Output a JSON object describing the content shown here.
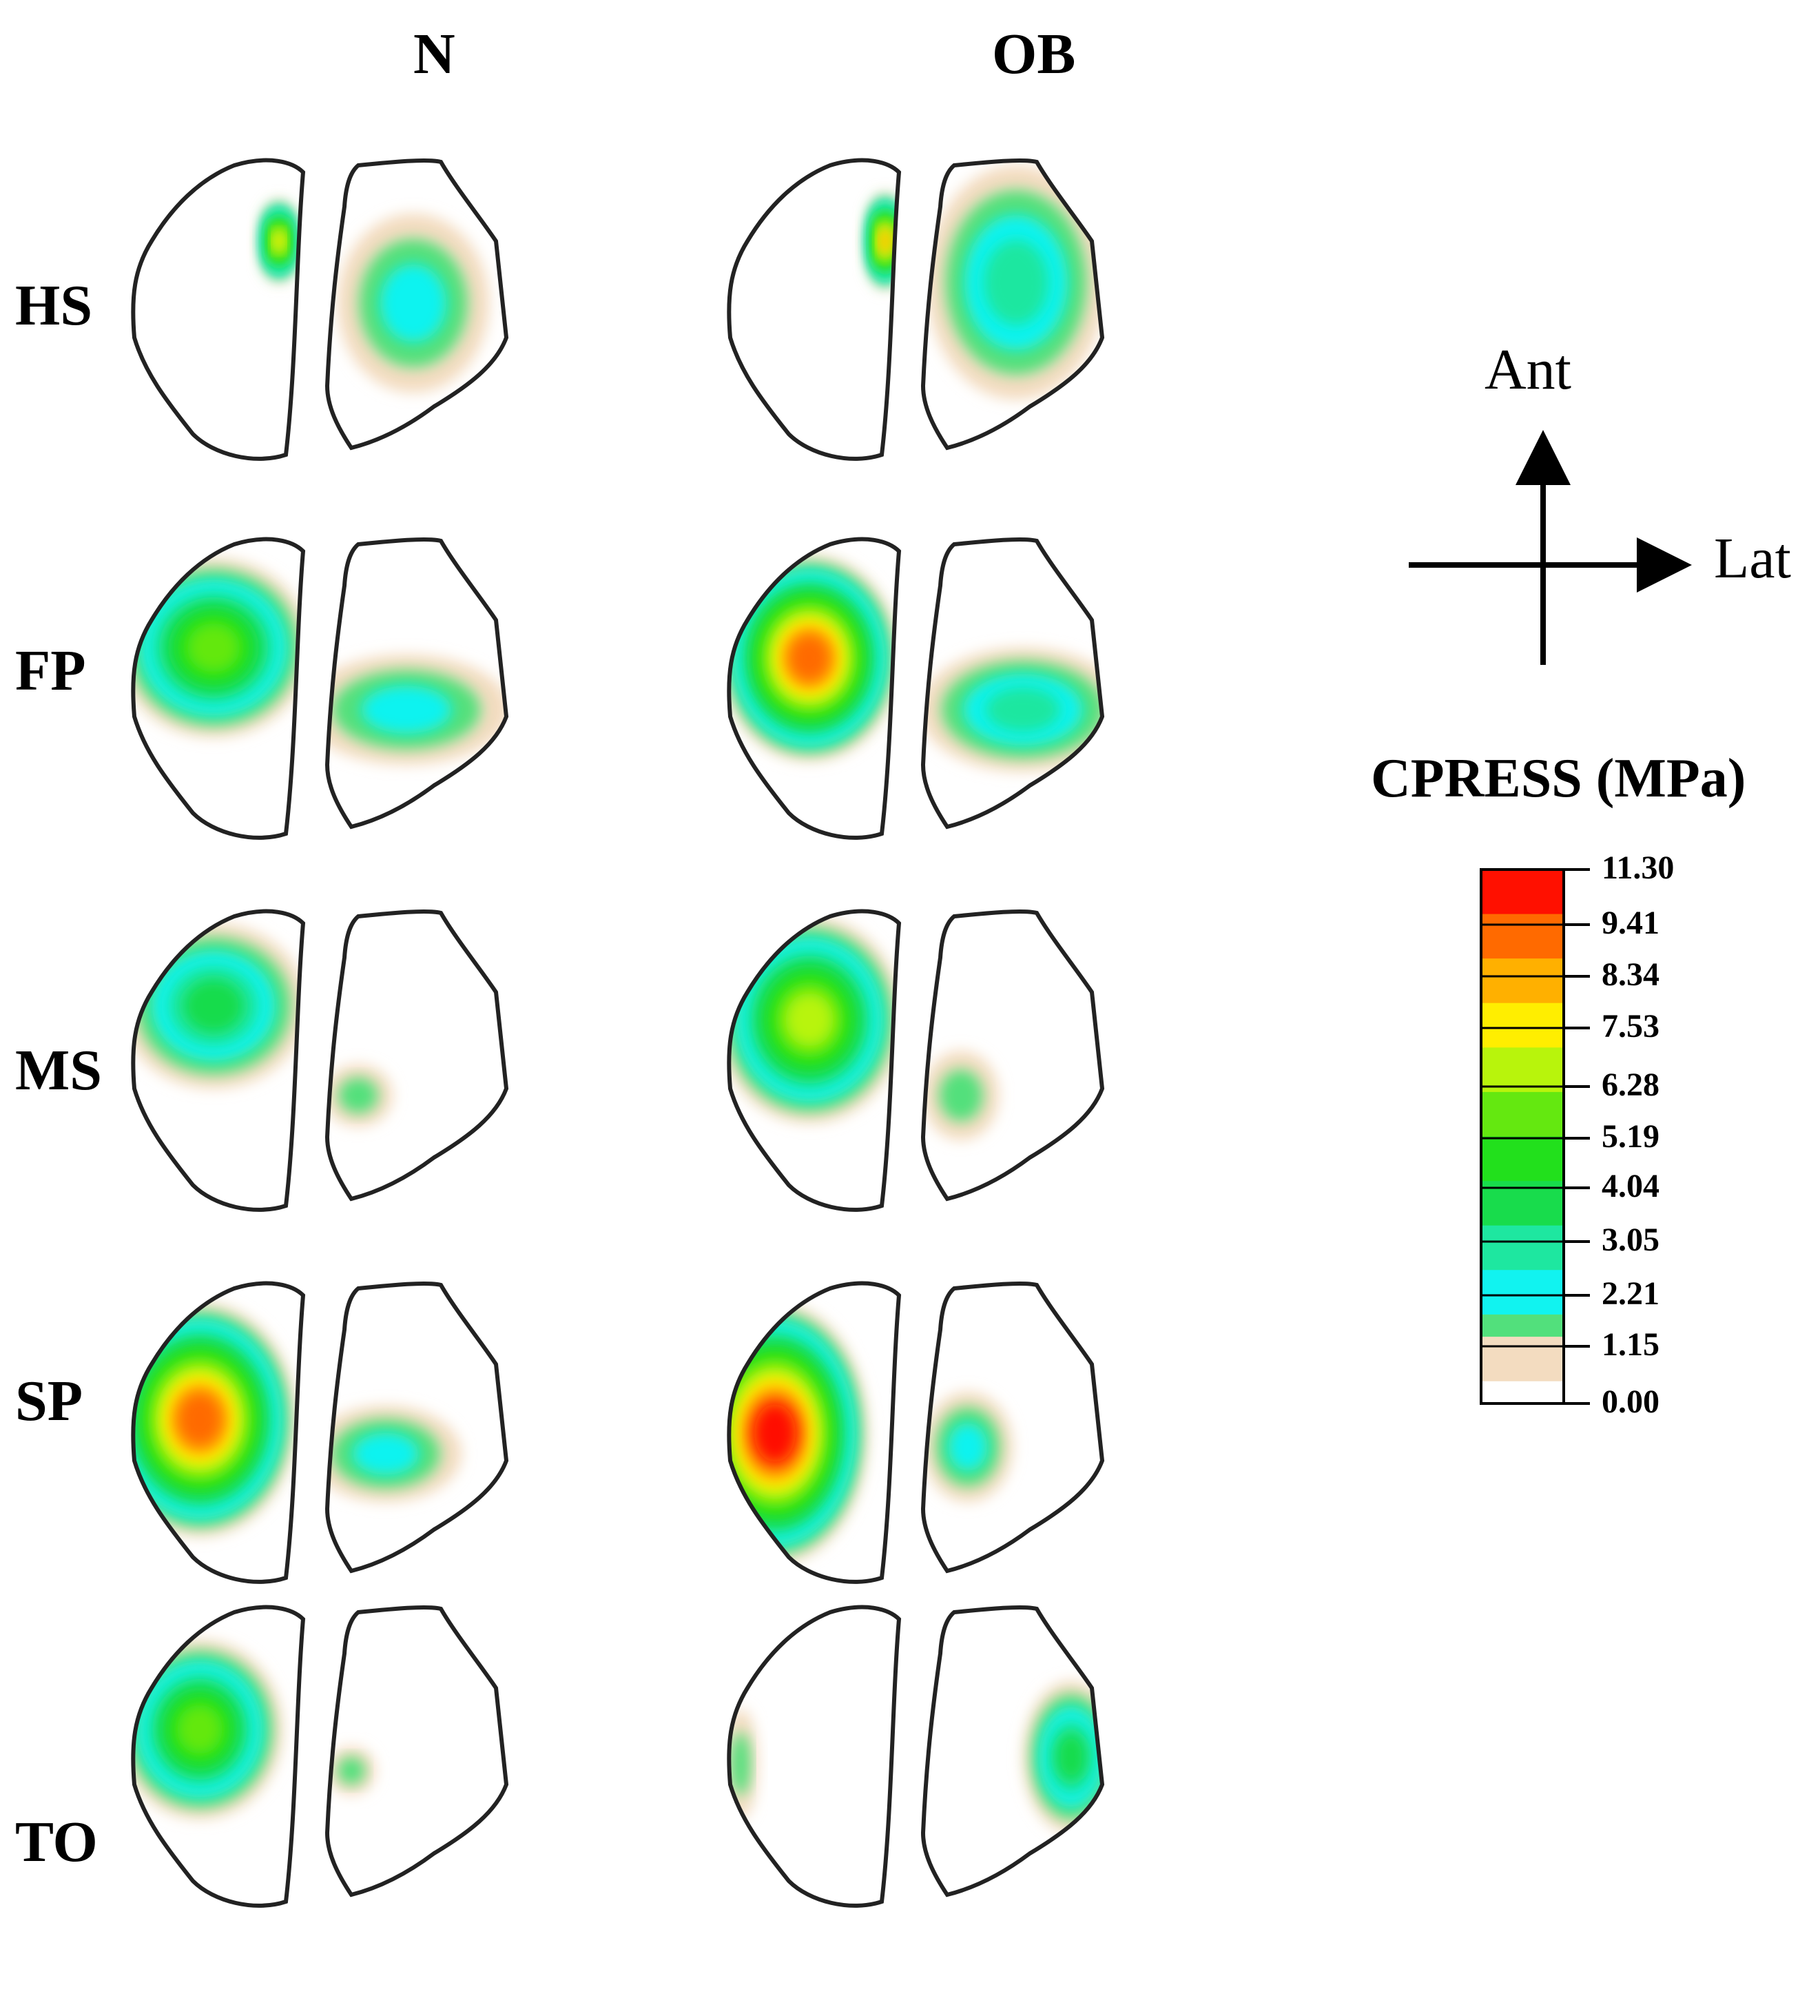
{
  "columns": [
    "N",
    "OB"
  ],
  "rows": [
    "HS",
    "FP",
    "MS",
    "SP",
    "TO"
  ],
  "orientation": {
    "anterior": "Ant",
    "lateral": "Lat"
  },
  "colorbar": {
    "title": "CPRESS (MPa)",
    "ticks": [
      "11.30",
      "9.41",
      "8.34",
      "7.53",
      "6.28",
      "5.19",
      "4.04",
      "3.05",
      "2.21",
      "1.15",
      "0.00"
    ]
  },
  "colors": {
    "c0": "#ffffff",
    "c1": "#f3dcc0",
    "c2": "#52e07c",
    "c3": "#11f3f0",
    "c4": "#1ee7a0",
    "c5": "#18dc4c",
    "c6": "#22e01c",
    "c7": "#64e810",
    "c8": "#b8f40c",
    "c9": "#ffee00",
    "c10": "#ffb000",
    "c11": "#ff6a00",
    "c12": "#ff1000"
  },
  "panels": [
    {
      "row": "HS",
      "col": "N",
      "medial": [],
      "lateral": [
        {
          "l": 3
        }
      ]
    },
    {
      "row": "HS",
      "col": "OB",
      "medial": [],
      "lateral": [
        {
          "l": 4
        }
      ]
    },
    {
      "row": "FP",
      "col": "N",
      "medial": [
        {
          "l": 7
        }
      ],
      "lateral": [
        {
          "l": 3
        }
      ]
    },
    {
      "row": "FP",
      "col": "OB",
      "medial": [
        {
          "l": 11
        }
      ],
      "lateral": [
        {
          "l": 4
        }
      ]
    },
    {
      "row": "MS",
      "col": "N",
      "medial": [
        {
          "l": 5
        }
      ],
      "lateral": [
        {
          "l": 2
        }
      ]
    },
    {
      "row": "MS",
      "col": "OB",
      "medial": [
        {
          "l": 8
        }
      ],
      "lateral": [
        {
          "l": 2
        }
      ]
    },
    {
      "row": "SP",
      "col": "N",
      "medial": [
        {
          "l": 11
        }
      ],
      "lateral": [
        {
          "l": 3
        }
      ]
    },
    {
      "row": "SP",
      "col": "OB",
      "medial": [
        {
          "l": 12
        }
      ],
      "lateral": [
        {
          "l": 3
        }
      ]
    },
    {
      "row": "TO",
      "col": "N",
      "medial": [
        {
          "l": 7
        }
      ],
      "lateral": [
        {
          "l": 2
        }
      ]
    },
    {
      "row": "TO",
      "col": "OB",
      "medial": [
        {
          "l": 2
        }
      ],
      "lateral": [
        {
          "l": 5
        }
      ]
    }
  ]
}
